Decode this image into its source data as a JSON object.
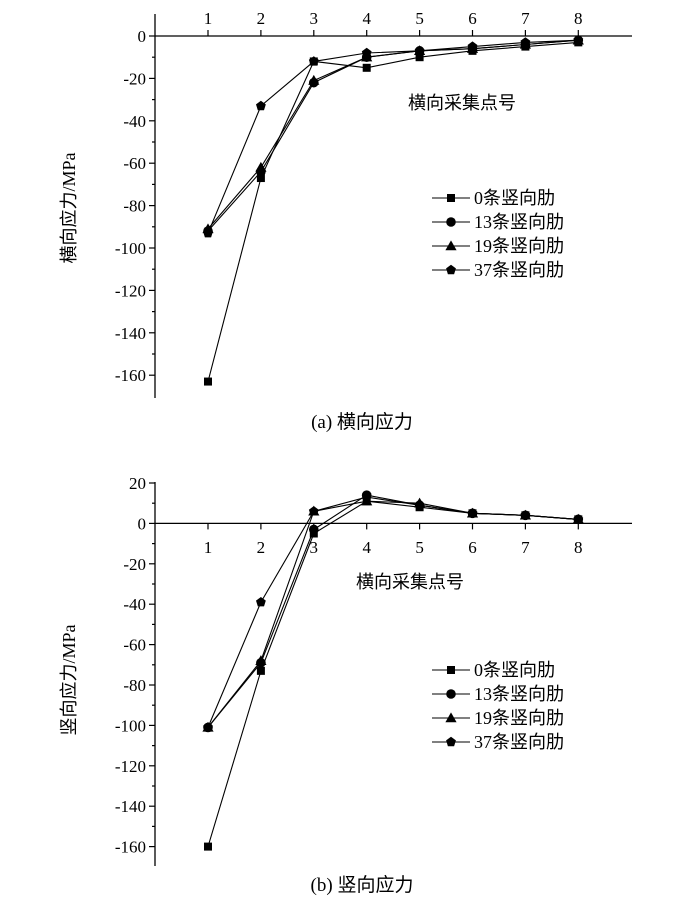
{
  "chart_data": [
    {
      "type": "line",
      "caption": "(a) 横向应力",
      "xlabel": "横向采集点号",
      "ylabel": "横向应力/MPa",
      "x": [
        1,
        2,
        3,
        4,
        5,
        6,
        7,
        8
      ],
      "x_ticks": [
        "1",
        "2",
        "3",
        "4",
        "5",
        "6",
        "7",
        "8"
      ],
      "y_ticks": [
        "0",
        "-20",
        "-40",
        "-60",
        "-80",
        "-100",
        "-120",
        "-140",
        "-160"
      ],
      "y_tick_values": [
        0,
        -20,
        -40,
        -60,
        -80,
        -100,
        -120,
        -140,
        -160
      ],
      "xlim": [
        0.2,
        9.0
      ],
      "ylim": [
        -170,
        10
      ],
      "x_axis_position": "top",
      "legend_position": "right",
      "series": [
        {
          "name": "0条竖向肋",
          "marker": "square",
          "values": [
            -163,
            -67,
            -12,
            -15,
            -10,
            -7,
            -5,
            -3
          ]
        },
        {
          "name": "13条竖向肋",
          "marker": "circle",
          "values": [
            -92,
            -64,
            -22,
            -10,
            -7,
            -6,
            -4,
            -2
          ]
        },
        {
          "name": "19条竖向肋",
          "marker": "triangle",
          "values": [
            -91,
            -62,
            -21,
            -10,
            -7,
            -6,
            -4,
            -2
          ]
        },
        {
          "name": "37条竖向肋",
          "marker": "pentagon",
          "values": [
            -93,
            -33,
            -12,
            -8,
            -7,
            -5,
            -3,
            -2
          ]
        }
      ]
    },
    {
      "type": "line",
      "caption": "(b) 竖向应力",
      "xlabel": "横向采集点号",
      "ylabel": "竖向应力/MPa",
      "x": [
        1,
        2,
        3,
        4,
        5,
        6,
        7,
        8
      ],
      "x_ticks": [
        "1",
        "2",
        "3",
        "4",
        "5",
        "6",
        "7",
        "8"
      ],
      "y_ticks": [
        "20",
        "0",
        "-20",
        "-40",
        "-60",
        "-80",
        "-100",
        "-120",
        "-140",
        "-160"
      ],
      "y_tick_values": [
        20,
        0,
        -20,
        -40,
        -60,
        -80,
        -100,
        -120,
        -140,
        -160
      ],
      "xlim": [
        0.2,
        9.0
      ],
      "ylim": [
        -170,
        20
      ],
      "x_axis_position": "y=0",
      "legend_position": "right",
      "series": [
        {
          "name": "0条竖向肋",
          "marker": "square",
          "values": [
            -160,
            -73,
            -5,
            11,
            8,
            5,
            4,
            2
          ]
        },
        {
          "name": "13条竖向肋",
          "marker": "circle",
          "values": [
            -101,
            -69,
            -3,
            14,
            9,
            5,
            4,
            2
          ]
        },
        {
          "name": "19条竖向肋",
          "marker": "triangle",
          "values": [
            -101,
            -68,
            6,
            11,
            10,
            5,
            4,
            2
          ]
        },
        {
          "name": "37条竖向肋",
          "marker": "pentagon",
          "values": [
            -101,
            -39,
            6,
            13,
            9,
            5,
            4,
            2
          ]
        }
      ]
    }
  ]
}
